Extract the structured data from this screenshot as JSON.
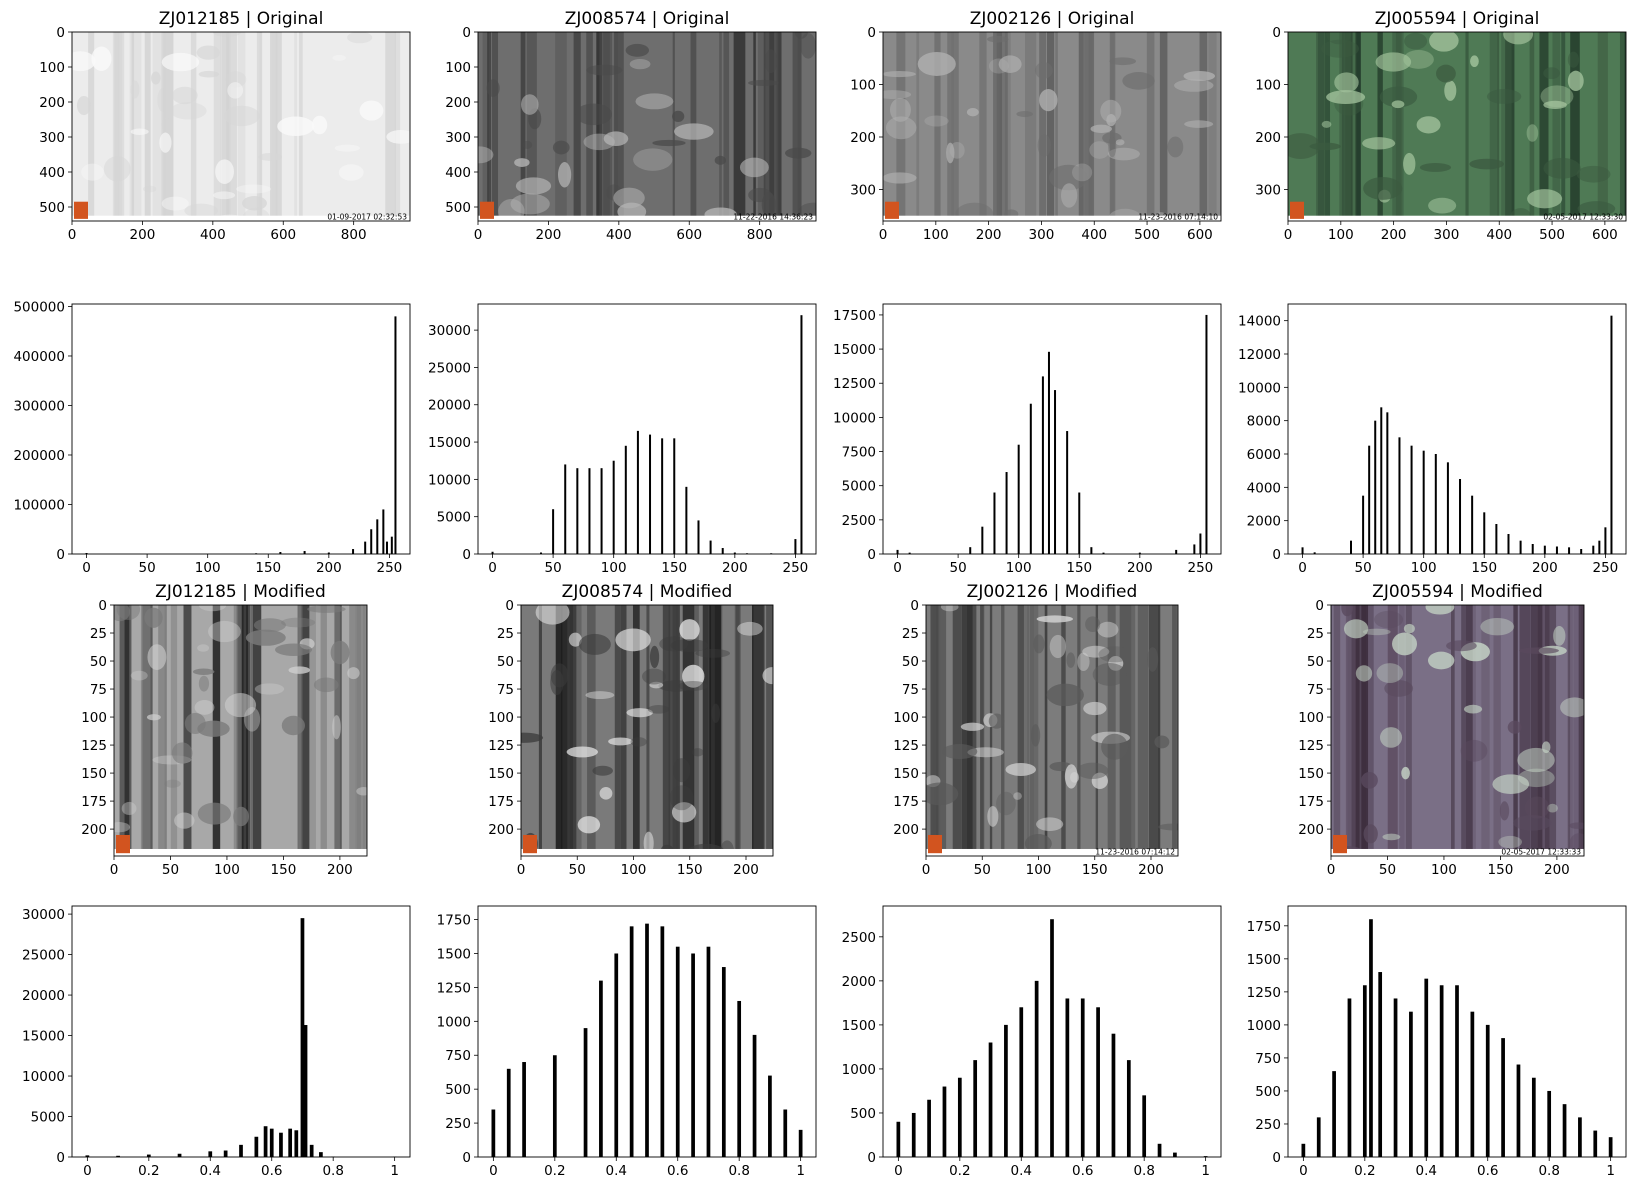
{
  "chart_data": [
    {
      "type": "image",
      "title": "ZJ012185 | Original",
      "xlim": [
        0,
        960
      ],
      "ylim": [
        540,
        0
      ],
      "xticks": [
        0,
        200,
        400,
        600,
        800
      ],
      "yticks": [
        0,
        100,
        200,
        300,
        400,
        500
      ],
      "timestamp": "01-09-2017 02:32:53",
      "tone": "light"
    },
    {
      "type": "image",
      "title": "ZJ008574 | Original",
      "xlim": [
        0,
        960
      ],
      "ylim": [
        540,
        0
      ],
      "xticks": [
        0,
        200,
        400,
        600,
        800
      ],
      "yticks": [
        0,
        100,
        200,
        300,
        400,
        500
      ],
      "timestamp": "11-22-2016 14:36:23",
      "tone": "forest-gray"
    },
    {
      "type": "image",
      "title": "ZJ002126 | Original",
      "xlim": [
        0,
        640
      ],
      "ylim": [
        360,
        0
      ],
      "xticks": [
        0,
        100,
        200,
        300,
        400,
        500,
        600
      ],
      "yticks": [
        0,
        100,
        200,
        300
      ],
      "timestamp": "11-23-2016  07:14:10",
      "tone": "night-gray"
    },
    {
      "type": "image",
      "title": "ZJ005594 | Original",
      "xlim": [
        0,
        640
      ],
      "ylim": [
        360,
        0
      ],
      "xticks": [
        0,
        100,
        200,
        300,
        400,
        500,
        600
      ],
      "yticks": [
        0,
        100,
        200,
        300
      ],
      "timestamp": "02-05-2017  12:33:30",
      "tone": "forest-green"
    },
    {
      "type": "bar",
      "title": "",
      "xlim": [
        -12,
        267
      ],
      "xticks": [
        0,
        50,
        100,
        150,
        200,
        250
      ],
      "ylim": [
        0,
        505000
      ],
      "yticks": [
        0,
        100000,
        200000,
        300000,
        400000,
        500000
      ],
      "x": [
        0,
        140,
        160,
        180,
        200,
        220,
        230,
        235,
        240,
        245,
        248,
        252,
        255
      ],
      "y": [
        2000,
        1500,
        4000,
        6000,
        3000,
        10000,
        25000,
        50000,
        70000,
        90000,
        25000,
        35000,
        480000
      ]
    },
    {
      "type": "bar",
      "title": "",
      "xlim": [
        -12,
        267
      ],
      "xticks": [
        0,
        50,
        100,
        150,
        200,
        250
      ],
      "ylim": [
        0,
        33500
      ],
      "yticks": [
        0,
        5000,
        10000,
        15000,
        20000,
        25000,
        30000
      ],
      "x": [
        0,
        40,
        50,
        60,
        70,
        80,
        90,
        100,
        110,
        120,
        130,
        140,
        150,
        160,
        170,
        180,
        190,
        200,
        210,
        230,
        250,
        255
      ],
      "y": [
        300,
        200,
        6000,
        12000,
        11500,
        11500,
        11500,
        12500,
        14500,
        16500,
        16000,
        15500,
        15500,
        9000,
        4500,
        1800,
        800,
        200,
        100,
        100,
        2000,
        32000
      ]
    },
    {
      "type": "bar",
      "title": "",
      "xlim": [
        -12,
        267
      ],
      "xticks": [
        0,
        50,
        100,
        150,
        200,
        250
      ],
      "ylim": [
        0,
        18300
      ],
      "yticks": [
        0,
        2500,
        5000,
        7500,
        10000,
        12500,
        15000,
        17500
      ],
      "x": [
        0,
        10,
        60,
        70,
        80,
        90,
        100,
        110,
        120,
        125,
        130,
        140,
        150,
        160,
        170,
        200,
        230,
        245,
        250,
        255
      ],
      "y": [
        300,
        100,
        500,
        2000,
        4500,
        6000,
        8000,
        11000,
        13000,
        14800,
        12000,
        9000,
        4500,
        500,
        100,
        100,
        300,
        700,
        1500,
        17500
      ]
    },
    {
      "type": "bar",
      "title": "",
      "xlim": [
        -12,
        267
      ],
      "xticks": [
        0,
        50,
        100,
        150,
        200,
        250
      ],
      "ylim": [
        0,
        15000
      ],
      "yticks": [
        0,
        2000,
        4000,
        6000,
        8000,
        10000,
        12000,
        14000
      ],
      "x": [
        0,
        10,
        40,
        50,
        55,
        60,
        65,
        70,
        80,
        90,
        100,
        110,
        120,
        130,
        140,
        150,
        160,
        170,
        180,
        190,
        200,
        210,
        220,
        230,
        240,
        245,
        250,
        255
      ],
      "y": [
        400,
        100,
        800,
        3500,
        6500,
        8000,
        8800,
        8500,
        7000,
        6500,
        6200,
        6000,
        5500,
        4500,
        3500,
        2500,
        1800,
        1200,
        800,
        600,
        500,
        450,
        400,
        300,
        500,
        800,
        1600,
        14300
      ]
    },
    {
      "type": "image",
      "title": "ZJ012185 | Modified",
      "xlim": [
        0,
        224
      ],
      "ylim": [
        224,
        0
      ],
      "xticks": [
        0,
        50,
        100,
        150,
        200
      ],
      "yticks": [
        0,
        25,
        50,
        75,
        100,
        125,
        150,
        175,
        200
      ],
      "timestamp": "",
      "tone": "mod-light"
    },
    {
      "type": "image",
      "title": "ZJ008574 | Modified",
      "xlim": [
        0,
        224
      ],
      "ylim": [
        224,
        0
      ],
      "xticks": [
        0,
        50,
        100,
        150,
        200
      ],
      "yticks": [
        0,
        25,
        50,
        75,
        100,
        125,
        150,
        175,
        200
      ],
      "timestamp": "",
      "tone": "mod-forest"
    },
    {
      "type": "image",
      "title": "ZJ002126 | Modified",
      "xlim": [
        0,
        224
      ],
      "ylim": [
        224,
        0
      ],
      "xticks": [
        0,
        50,
        100,
        150,
        200
      ],
      "yticks": [
        0,
        25,
        50,
        75,
        100,
        125,
        150,
        175,
        200
      ],
      "timestamp": "11-23-2016  07:14:12",
      "tone": "mod-night"
    },
    {
      "type": "image",
      "title": "ZJ005594 | Modified",
      "xlim": [
        0,
        224
      ],
      "ylim": [
        224,
        0
      ],
      "xticks": [
        0,
        50,
        100,
        150,
        200
      ],
      "yticks": [
        0,
        25,
        50,
        75,
        100,
        125,
        150,
        175,
        200
      ],
      "timestamp": "02-05-2017  12:33:33",
      "tone": "mod-pink"
    },
    {
      "type": "bar",
      "title": "",
      "xlim": [
        -0.05,
        1.05
      ],
      "xticks": [
        0.0,
        0.2,
        0.4,
        0.6,
        0.8,
        1.0
      ],
      "ylim": [
        0,
        31000
      ],
      "yticks": [
        0,
        5000,
        10000,
        15000,
        20000,
        25000,
        30000
      ],
      "x": [
        0.0,
        0.1,
        0.2,
        0.3,
        0.4,
        0.45,
        0.5,
        0.55,
        0.58,
        0.6,
        0.63,
        0.66,
        0.68,
        0.7,
        0.71,
        0.73,
        0.76,
        0.8,
        1.0
      ],
      "y": [
        200,
        150,
        300,
        400,
        700,
        800,
        1500,
        2500,
        3800,
        3500,
        3000,
        3500,
        3300,
        29500,
        16300,
        1500,
        600,
        50,
        50
      ]
    },
    {
      "type": "bar",
      "title": "",
      "xlim": [
        -0.05,
        1.05
      ],
      "xticks": [
        0.0,
        0.2,
        0.4,
        0.6,
        0.8,
        1.0
      ],
      "ylim": [
        0,
        1850
      ],
      "yticks": [
        0,
        250,
        500,
        750,
        1000,
        1250,
        1500,
        1750
      ],
      "x": [
        0.0,
        0.05,
        0.1,
        0.2,
        0.3,
        0.35,
        0.4,
        0.45,
        0.5,
        0.55,
        0.6,
        0.65,
        0.7,
        0.75,
        0.8,
        0.85,
        0.9,
        0.95,
        1.0
      ],
      "y": [
        350,
        650,
        700,
        750,
        950,
        1300,
        1500,
        1700,
        1720,
        1700,
        1550,
        1500,
        1550,
        1400,
        1150,
        900,
        600,
        350,
        200
      ]
    },
    {
      "type": "bar",
      "title": "",
      "xlim": [
        -0.05,
        1.05
      ],
      "xticks": [
        0.0,
        0.2,
        0.4,
        0.6,
        0.8,
        1.0
      ],
      "ylim": [
        0,
        2850
      ],
      "yticks": [
        0,
        500,
        1000,
        1500,
        2000,
        2500
      ],
      "x": [
        0.0,
        0.05,
        0.1,
        0.15,
        0.2,
        0.25,
        0.3,
        0.35,
        0.4,
        0.45,
        0.5,
        0.55,
        0.6,
        0.65,
        0.7,
        0.75,
        0.8,
        0.85,
        0.9,
        1.0
      ],
      "y": [
        400,
        500,
        650,
        800,
        900,
        1100,
        1300,
        1500,
        1700,
        2000,
        2700,
        1800,
        1800,
        1700,
        1400,
        1100,
        700,
        150,
        50,
        10
      ]
    },
    {
      "type": "bar",
      "title": "",
      "xlim": [
        -0.05,
        1.05
      ],
      "xticks": [
        0.0,
        0.2,
        0.4,
        0.6,
        0.8,
        1.0
      ],
      "ylim": [
        0,
        1900
      ],
      "yticks": [
        0,
        250,
        500,
        750,
        1000,
        1250,
        1500,
        1750
      ],
      "x": [
        0.0,
        0.05,
        0.1,
        0.15,
        0.2,
        0.22,
        0.25,
        0.3,
        0.35,
        0.4,
        0.45,
        0.5,
        0.55,
        0.6,
        0.65,
        0.7,
        0.75,
        0.8,
        0.85,
        0.9,
        0.95,
        1.0
      ],
      "y": [
        100,
        300,
        650,
        1200,
        1300,
        1800,
        1400,
        1200,
        1100,
        1350,
        1300,
        1300,
        1100,
        1000,
        900,
        700,
        600,
        500,
        400,
        300,
        200,
        150
      ]
    }
  ]
}
